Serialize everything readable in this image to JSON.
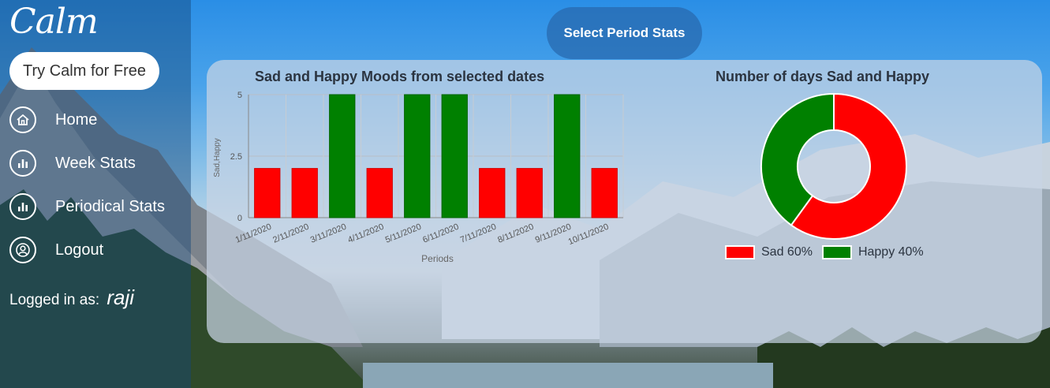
{
  "app": {
    "logo": "Calm",
    "try_label": "Try Calm for Free"
  },
  "sidebar": {
    "items": [
      {
        "label": "Home",
        "icon": "home-icon"
      },
      {
        "label": "Week Stats",
        "icon": "bar-chart-icon"
      },
      {
        "label": "Periodical Stats",
        "icon": "bar-chart-icon"
      },
      {
        "label": "Logout",
        "icon": "user-icon"
      }
    ],
    "logged_prefix": "Logged in as:",
    "username": "raji"
  },
  "header": {
    "period_button": "Select Period Stats"
  },
  "colors": {
    "sad": "#ff0000",
    "happy": "#008000"
  },
  "chart_data": [
    {
      "type": "bar",
      "title": "Sad and Happy Moods from selected dates",
      "xlabel": "Periods",
      "ylabel": "Sad,Happy",
      "ylim": [
        0,
        5
      ],
      "yticks": [
        "0",
        "2.5",
        "5"
      ],
      "categories": [
        "1/11/2020",
        "2/11/2020",
        "3/11/2020",
        "4/11/2020",
        "5/11/2020",
        "6/11/2020",
        "7/11/2020",
        "8/11/2020",
        "9/11/2020",
        "10/11/2020"
      ],
      "values": [
        2,
        2,
        5,
        2,
        5,
        5,
        2,
        2,
        5,
        2
      ],
      "bar_colors": [
        "#ff0000",
        "#ff0000",
        "#008000",
        "#ff0000",
        "#008000",
        "#008000",
        "#ff0000",
        "#ff0000",
        "#008000",
        "#ff0000"
      ],
      "grid": true
    },
    {
      "type": "pie",
      "title": "Number of days Sad and Happy",
      "labels": [
        "Sad 60%",
        "Happy 40%"
      ],
      "values": [
        60,
        40
      ],
      "colors": [
        "#ff0000",
        "#008000"
      ],
      "legend": "bottom"
    }
  ]
}
